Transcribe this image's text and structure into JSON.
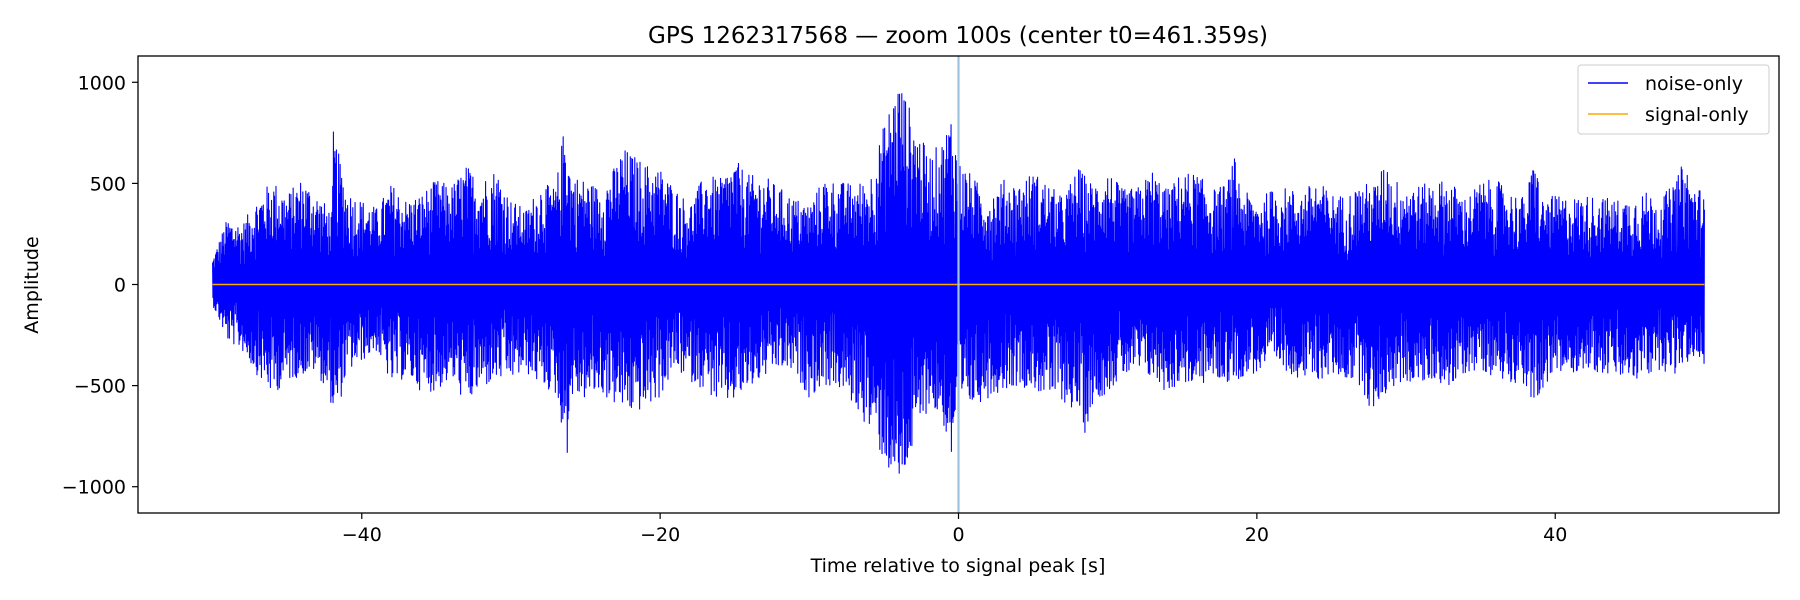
{
  "chart_data": {
    "type": "line",
    "title": "GPS 1262317568 — zoom 100s (center t0=461.359s)",
    "xlabel": "Time relative to signal peak [s]",
    "ylabel": "Amplitude",
    "xlim": [
      -55,
      55
    ],
    "ylim": [
      -1130,
      1130
    ],
    "xticks": [
      -40,
      -20,
      0,
      20,
      40
    ],
    "xtick_labels": [
      "−40",
      "−20",
      "0",
      "20",
      "40"
    ],
    "yticks": [
      -1000,
      -500,
      0,
      500,
      1000
    ],
    "ytick_labels": [
      "−1000",
      "−500",
      "0",
      "500",
      "1000"
    ],
    "grid": false,
    "legend_position": "upper right",
    "marker_line": {
      "x": 0,
      "color": "#9ec3e0"
    },
    "series": [
      {
        "name": "noise-only",
        "color": "#0000ff",
        "x_range": [
          -50,
          50
        ],
        "envelope_top": [
          [
            -50,
            130
          ],
          [
            -49,
            330
          ],
          [
            -48,
            300
          ],
          [
            -47,
            430
          ],
          [
            -46,
            520
          ],
          [
            -45,
            450
          ],
          [
            -44,
            530
          ],
          [
            -43,
            450
          ],
          [
            -42,
            360
          ],
          [
            -41.9,
            760
          ],
          [
            -41,
            470
          ],
          [
            -40,
            420
          ],
          [
            -39,
            380
          ],
          [
            -38,
            500
          ],
          [
            -37,
            420
          ],
          [
            -36,
            450
          ],
          [
            -35,
            520
          ],
          [
            -34,
            490
          ],
          [
            -33,
            590
          ],
          [
            -32,
            520
          ],
          [
            -31,
            580
          ],
          [
            -30,
            420
          ],
          [
            -29,
            370
          ],
          [
            -28,
            500
          ],
          [
            -27,
            480
          ],
          [
            -26.3,
            860
          ],
          [
            -26,
            550
          ],
          [
            -25,
            520
          ],
          [
            -24,
            480
          ],
          [
            -23,
            590
          ],
          [
            -22.5,
            680
          ],
          [
            -21,
            600
          ],
          [
            -20,
            580
          ],
          [
            -19,
            480
          ],
          [
            -18,
            400
          ],
          [
            -17,
            550
          ],
          [
            -16,
            520
          ],
          [
            -15,
            620
          ],
          [
            -14,
            540
          ],
          [
            -13,
            540
          ],
          [
            -12,
            480
          ],
          [
            -11,
            430
          ],
          [
            -10,
            400
          ],
          [
            -9,
            530
          ],
          [
            -8,
            510
          ],
          [
            -7,
            500
          ],
          [
            -6,
            520
          ],
          [
            -5,
            790
          ],
          [
            -4,
            1030
          ],
          [
            -3,
            820
          ],
          [
            -2,
            640
          ],
          [
            -1,
            720
          ],
          [
            -0.5,
            860
          ],
          [
            0,
            620
          ],
          [
            1,
            530
          ],
          [
            2,
            440
          ],
          [
            3,
            520
          ],
          [
            4,
            500
          ],
          [
            5,
            560
          ],
          [
            6,
            500
          ],
          [
            7,
            430
          ],
          [
            8,
            580
          ],
          [
            9,
            500
          ],
          [
            10,
            570
          ],
          [
            11,
            470
          ],
          [
            12,
            480
          ],
          [
            13,
            570
          ],
          [
            14,
            470
          ],
          [
            15,
            560
          ],
          [
            16,
            550
          ],
          [
            17,
            470
          ],
          [
            18,
            500
          ],
          [
            18.5,
            630
          ],
          [
            19,
            470
          ],
          [
            20,
            420
          ],
          [
            21,
            470
          ],
          [
            22,
            480
          ],
          [
            23,
            460
          ],
          [
            24,
            520
          ],
          [
            25,
            450
          ],
          [
            26,
            440
          ],
          [
            27,
            500
          ],
          [
            28,
            500
          ],
          [
            28.8,
            650
          ],
          [
            29,
            520
          ],
          [
            30,
            510
          ],
          [
            31,
            490
          ],
          [
            32,
            520
          ],
          [
            33,
            510
          ],
          [
            34,
            430
          ],
          [
            35,
            510
          ],
          [
            36,
            520
          ],
          [
            37,
            460
          ],
          [
            38,
            430
          ],
          [
            38.7,
            660
          ],
          [
            39,
            420
          ],
          [
            40,
            440
          ],
          [
            41,
            430
          ],
          [
            42,
            440
          ],
          [
            43,
            440
          ],
          [
            44,
            420
          ],
          [
            45,
            430
          ],
          [
            46,
            460
          ],
          [
            47,
            430
          ],
          [
            48,
            500
          ],
          [
            48.7,
            630
          ],
          [
            49,
            520
          ],
          [
            50,
            460
          ]
        ],
        "envelope_bottom": [
          [
            -50,
            -100
          ],
          [
            -49,
            -280
          ],
          [
            -48,
            -330
          ],
          [
            -47,
            -450
          ],
          [
            -46,
            -550
          ],
          [
            -45,
            -480
          ],
          [
            -44,
            -450
          ],
          [
            -43,
            -430
          ],
          [
            -42,
            -600
          ],
          [
            -41.8,
            -690
          ],
          [
            -41,
            -440
          ],
          [
            -40,
            -380
          ],
          [
            -39,
            -330
          ],
          [
            -38,
            -500
          ],
          [
            -37,
            -460
          ],
          [
            -36,
            -530
          ],
          [
            -35,
            -530
          ],
          [
            -34,
            -470
          ],
          [
            -33,
            -600
          ],
          [
            -32,
            -520
          ],
          [
            -31,
            -480
          ],
          [
            -30,
            -470
          ],
          [
            -29,
            -440
          ],
          [
            -28,
            -500
          ],
          [
            -27,
            -550
          ],
          [
            -26.2,
            -850
          ],
          [
            -26,
            -560
          ],
          [
            -25,
            -570
          ],
          [
            -24,
            -540
          ],
          [
            -23,
            -600
          ],
          [
            -22,
            -640
          ],
          [
            -21,
            -620
          ],
          [
            -20,
            -560
          ],
          [
            -19,
            -420
          ],
          [
            -18,
            -480
          ],
          [
            -17,
            -520
          ],
          [
            -16,
            -600
          ],
          [
            -15,
            -580
          ],
          [
            -14,
            -520
          ],
          [
            -13,
            -460
          ],
          [
            -12,
            -420
          ],
          [
            -11,
            -440
          ],
          [
            -10,
            -560
          ],
          [
            -9,
            -500
          ],
          [
            -8,
            -520
          ],
          [
            -7,
            -600
          ],
          [
            -6,
            -720
          ],
          [
            -5,
            -880
          ],
          [
            -4,
            -1030
          ],
          [
            -3,
            -820
          ],
          [
            -2,
            -600
          ],
          [
            -1,
            -700
          ],
          [
            -0.5,
            -890
          ],
          [
            0,
            -650
          ],
          [
            1,
            -600
          ],
          [
            2,
            -560
          ],
          [
            3,
            -520
          ],
          [
            4,
            -500
          ],
          [
            5,
            -520
          ],
          [
            6,
            -560
          ],
          [
            7,
            -580
          ],
          [
            8,
            -640
          ],
          [
            8.5,
            -740
          ],
          [
            9,
            -590
          ],
          [
            10,
            -530
          ],
          [
            11,
            -460
          ],
          [
            12,
            -440
          ],
          [
            13,
            -470
          ],
          [
            14,
            -540
          ],
          [
            15,
            -480
          ],
          [
            16,
            -520
          ],
          [
            17,
            -460
          ],
          [
            18,
            -490
          ],
          [
            19,
            -460
          ],
          [
            20,
            -440
          ],
          [
            21,
            -400
          ],
          [
            22,
            -430
          ],
          [
            23,
            -470
          ],
          [
            24,
            -480
          ],
          [
            25,
            -450
          ],
          [
            26,
            -470
          ],
          [
            27,
            -500
          ],
          [
            27.8,
            -670
          ],
          [
            28,
            -590
          ],
          [
            29,
            -520
          ],
          [
            30,
            -480
          ],
          [
            31,
            -500
          ],
          [
            32,
            -470
          ],
          [
            33,
            -520
          ],
          [
            34,
            -440
          ],
          [
            35,
            -420
          ],
          [
            36,
            -460
          ],
          [
            37,
            -480
          ],
          [
            38,
            -500
          ],
          [
            38.8,
            -690
          ],
          [
            39,
            -520
          ],
          [
            40,
            -460
          ],
          [
            41,
            -440
          ],
          [
            42,
            -420
          ],
          [
            43,
            -440
          ],
          [
            44,
            -460
          ],
          [
            45,
            -480
          ],
          [
            46,
            -470
          ],
          [
            47,
            -420
          ],
          [
            48,
            -450
          ],
          [
            49,
            -380
          ],
          [
            50,
            -400
          ]
        ]
      },
      {
        "name": "signal-only",
        "color": "#ffa500",
        "x": [
          -50,
          50
        ],
        "y": [
          0,
          0
        ]
      }
    ]
  }
}
